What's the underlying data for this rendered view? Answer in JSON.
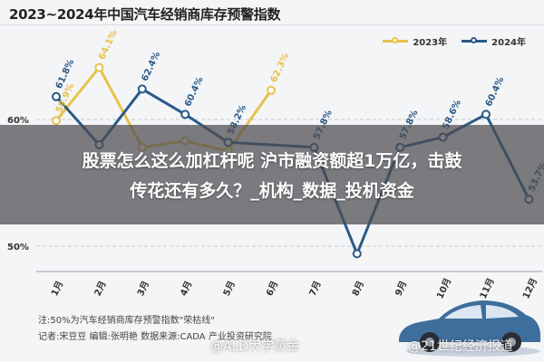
{
  "header": {
    "title": "2023~2024年中国汽车经销商库存预警指数"
  },
  "overlay": {
    "line1": "股票怎么这么加杠杆呢 沪市融资额超1万亿，击鼓",
    "line2": "传花还有多久？_机构_数据_投机资金"
  },
  "footer": {
    "note": "注:50%为汽车经销商库存预警指数\"荣枯线\"",
    "credits": "记者:宋豆豆  编辑:张明艳  数据来源:CADA 产业投资研究院"
  },
  "watermarks": {
    "left": "@ALD大学黄金",
    "right": "@21世纪经济报道"
  },
  "colors": {
    "s2023": "#e8c24a",
    "s2024": "#2b5a86",
    "grid": "#c9ccd2"
  },
  "chart_data": {
    "type": "line",
    "categories": [
      "1月",
      "2月",
      "3月",
      "4月",
      "5月",
      "6月",
      "7月",
      "8月",
      "9月",
      "10月",
      "11月",
      "12月"
    ],
    "series": [
      {
        "name": "2023年",
        "values": [
          59.9,
          64.1,
          57.8,
          58.3,
          57.5,
          62.3,
          null,
          null,
          null,
          null,
          null,
          null
        ]
      },
      {
        "name": "2024年",
        "values": [
          61.8,
          58.0,
          62.4,
          60.4,
          58.2,
          null,
          57.8,
          49.4,
          57.8,
          58.6,
          60.4,
          53.7
        ]
      }
    ],
    "y_tick_labels": [
      {
        "value": 60,
        "label": "60%"
      },
      {
        "value": 50,
        "label": "50%"
      }
    ],
    "data_labels_2023": [
      "59.9%",
      "64.1%",
      "",
      "",
      "",
      "62.3%",
      "",
      "",
      "",
      "",
      "",
      ""
    ],
    "data_labels_2024": [
      "61.8%",
      "",
      "62.4%",
      "60.4%",
      "58.2%",
      "",
      "57.8%",
      "",
      "57.8%",
      "58.6%",
      "60.4%",
      "53.7%"
    ],
    "ylim": [
      48,
      66
    ],
    "legend_position": "top-right",
    "grid": true
  }
}
